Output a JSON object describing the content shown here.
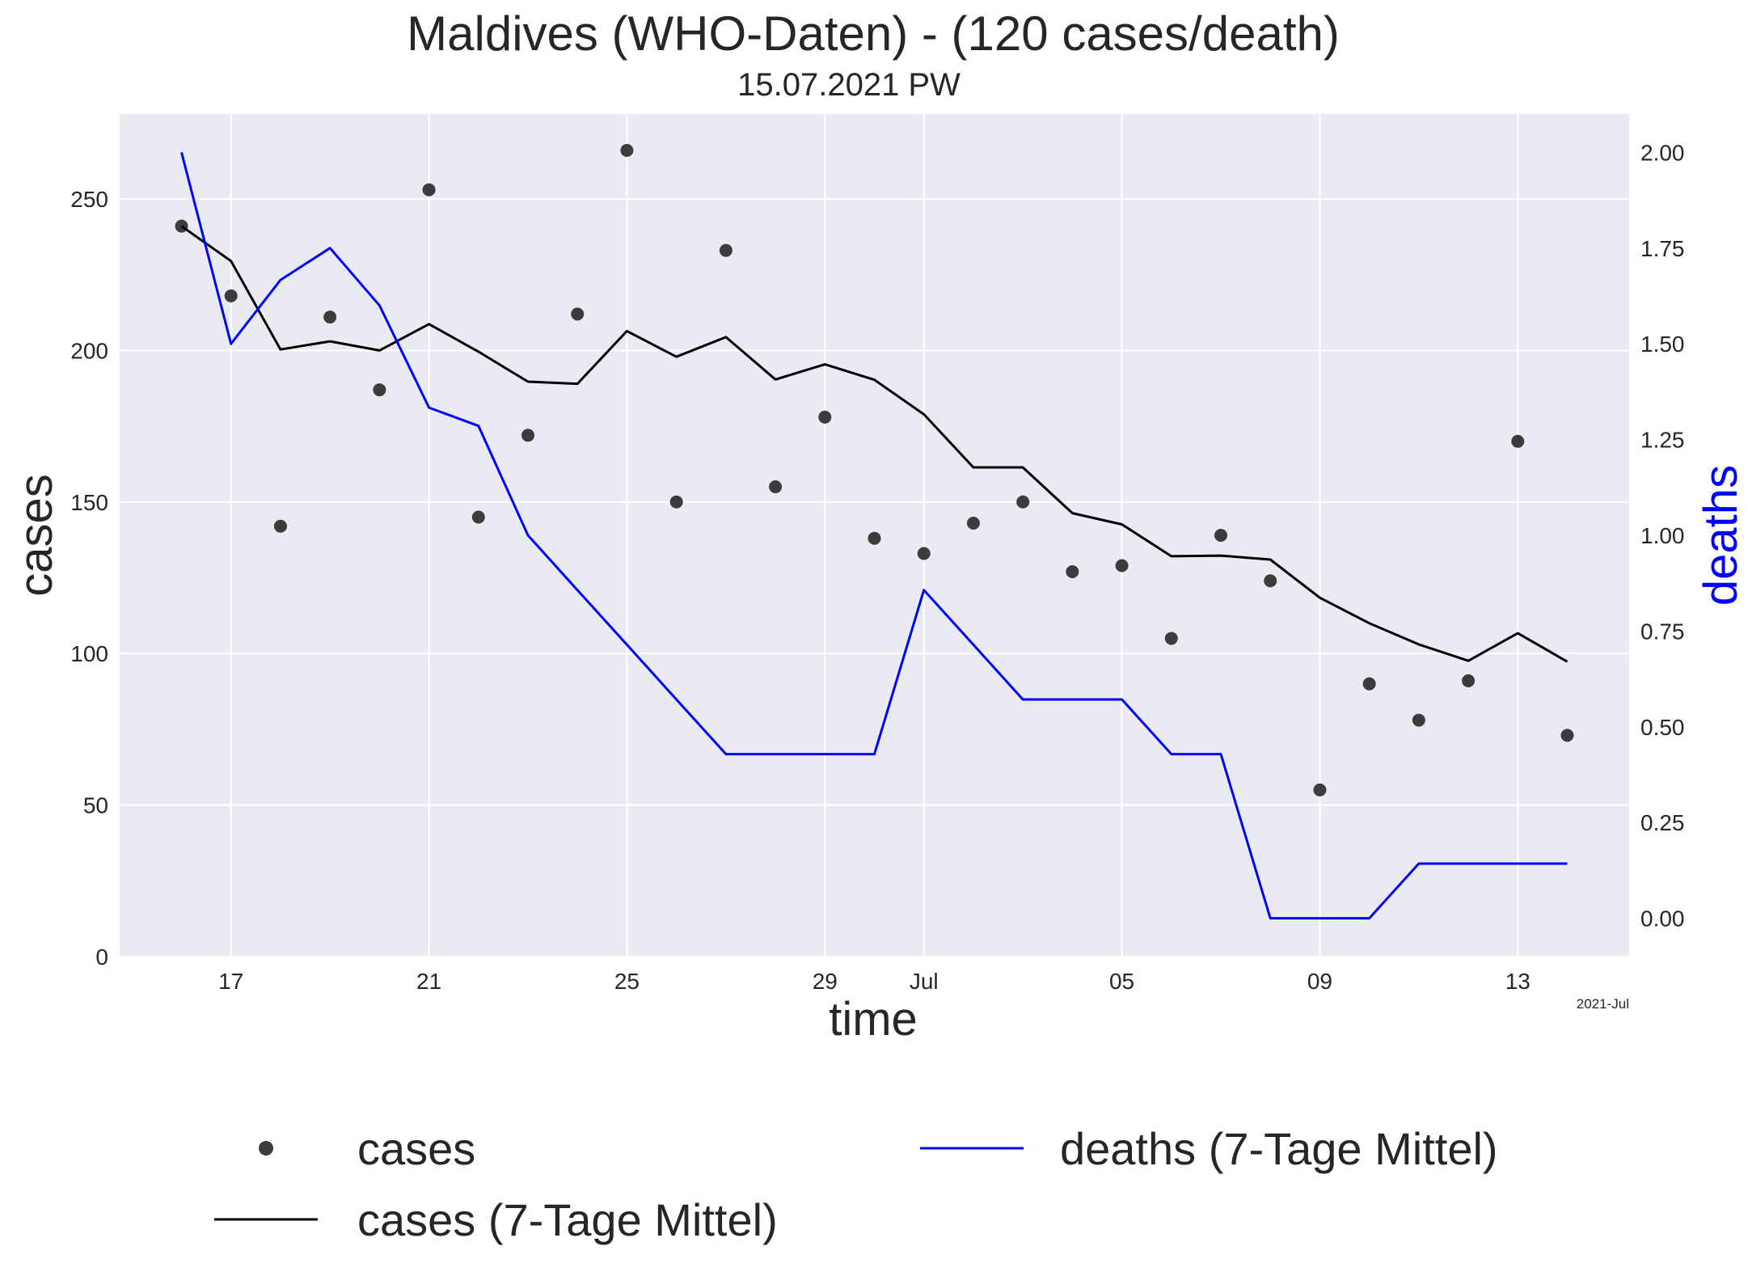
{
  "chart_data": {
    "type": "line",
    "title": "Maldives (WHO-Daten) - (120 cases/death)",
    "subtitle": "15.07.2021 PW",
    "xlabel": "time",
    "ylabel_left": "cases",
    "ylabel_right": "deaths",
    "x_offset_label": "2021-Jul",
    "ylim_left": [
      0,
      278
    ],
    "ylim_right": [
      -0.1,
      2.1
    ],
    "xlim": [
      "2021-06-14T18:00",
      "2021-07-15T06:00"
    ],
    "y_ticks_left": [
      0,
      50,
      100,
      150,
      200,
      250
    ],
    "y_ticks_right": [
      "0.00",
      "0.25",
      "0.50",
      "0.75",
      "1.00",
      "1.25",
      "1.50",
      "1.75",
      "2.00"
    ],
    "x_ticks": [
      {
        "date": "2021-06-17",
        "label": "17"
      },
      {
        "date": "2021-06-21",
        "label": "21"
      },
      {
        "date": "2021-06-25",
        "label": "25"
      },
      {
        "date": "2021-06-29",
        "label": "29"
      },
      {
        "date": "2021-07-01",
        "label": "Jul"
      },
      {
        "date": "2021-07-05",
        "label": "05"
      },
      {
        "date": "2021-07-09",
        "label": "09"
      },
      {
        "date": "2021-07-13",
        "label": "13"
      }
    ],
    "grid": true,
    "legend_placement": "bottom",
    "dates": [
      "2021-06-16",
      "2021-06-17",
      "2021-06-18",
      "2021-06-19",
      "2021-06-20",
      "2021-06-21",
      "2021-06-22",
      "2021-06-23",
      "2021-06-24",
      "2021-06-25",
      "2021-06-26",
      "2021-06-27",
      "2021-06-28",
      "2021-06-29",
      "2021-06-30",
      "2021-07-01",
      "2021-07-02",
      "2021-07-03",
      "2021-07-04",
      "2021-07-05",
      "2021-07-06",
      "2021-07-07",
      "2021-07-08",
      "2021-07-09",
      "2021-07-10",
      "2021-07-11",
      "2021-07-12",
      "2021-07-13",
      "2021-07-14"
    ],
    "series": [
      {
        "name": "cases",
        "style": "points",
        "axis": "left",
        "color": "#3c3c3c",
        "values": [
          241,
          218,
          142,
          211,
          187,
          253,
          145,
          172,
          212,
          266,
          150,
          233,
          155,
          178,
          138,
          133,
          143,
          150,
          127,
          129,
          105,
          139,
          124,
          55,
          90,
          78,
          91,
          170,
          73
        ]
      },
      {
        "name": "cases (7-Tage Mittel)",
        "style": "line",
        "axis": "left",
        "color": "#000000",
        "values": [
          241,
          229.5,
          200.3,
          203,
          200,
          208.7,
          199.6,
          189.7,
          189,
          206.4,
          197.9,
          204.4,
          190.4,
          195.4,
          190.3,
          178.9,
          161.4,
          161.4,
          146.3,
          142.6,
          132.1,
          132.3,
          131,
          118.4,
          110,
          103,
          97.6,
          106.7,
          97.3
        ]
      },
      {
        "name": "deaths (7-Tage Mittel)",
        "style": "line",
        "axis": "right",
        "color": "#0000ff",
        "values": [
          2.0,
          1.5,
          1.6667,
          1.75,
          1.6,
          1.3333,
          1.2857,
          1.0,
          0.8571,
          0.7143,
          0.5714,
          0.4286,
          0.4286,
          0.4286,
          0.4286,
          0.8571,
          0.7143,
          0.5714,
          0.5714,
          0.5714,
          0.4286,
          0.4286,
          0.0,
          0.0,
          0.0,
          0.1429,
          0.1429,
          0.1429,
          0.1429
        ]
      }
    ]
  },
  "legend": {
    "entries": [
      {
        "label": "cases"
      },
      {
        "label": "cases (7-Tage Mittel)"
      },
      {
        "label": "deaths (7-Tage Mittel)"
      }
    ]
  }
}
